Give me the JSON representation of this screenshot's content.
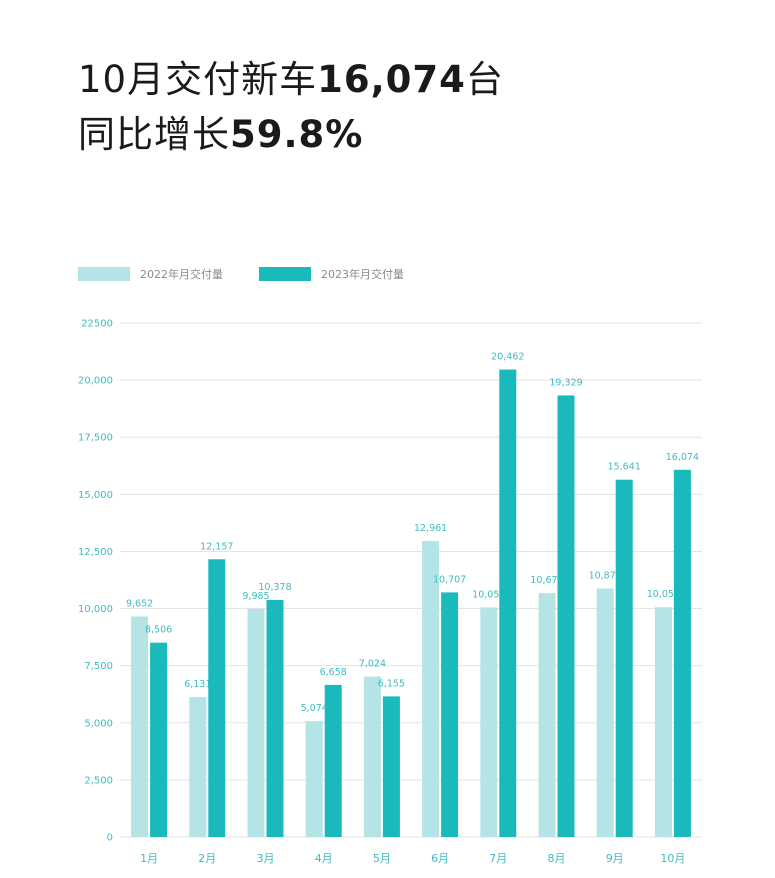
{
  "headline": {
    "line1_prefix": "10月交付新车",
    "line1_value": "16,074",
    "line1_suffix": "台",
    "line2_prefix": "同比增长",
    "line2_value": "59.8%"
  },
  "chart_data": {
    "type": "bar",
    "categories": [
      "1月",
      "2月",
      "3月",
      "4月",
      "5月",
      "6月",
      "7月",
      "8月",
      "9月",
      "10月"
    ],
    "series": [
      {
        "name": "2022年月交付量",
        "color": "#b4e4e6",
        "values": [
          9652,
          6131,
          9985,
          5074,
          7024,
          12961,
          10052,
          10677,
          10878,
          10059
        ],
        "labels": [
          "9,652",
          "6,131",
          "9,985",
          "5,074",
          "7,024",
          "12,961",
          "10,052",
          "10,677",
          "10,878",
          "10,059"
        ]
      },
      {
        "name": "2023年月交付量",
        "color": "#1ab9bb",
        "values": [
          8506,
          12157,
          10378,
          6658,
          6155,
          10707,
          20462,
          19329,
          15641,
          16074
        ],
        "labels": [
          "8,506",
          "12,157",
          "10,378",
          "6,658",
          "6,155",
          "10,707",
          "20,462",
          "19,329",
          "15,641",
          "16,074"
        ]
      }
    ],
    "yticks": [
      "0",
      "2,500",
      "5,000",
      "7,500",
      "10,000",
      "12,500",
      "15,000",
      "17,500",
      "20,000",
      "22500"
    ],
    "ylim": [
      0,
      22500
    ],
    "grid": true,
    "legend_position": "top-left"
  }
}
